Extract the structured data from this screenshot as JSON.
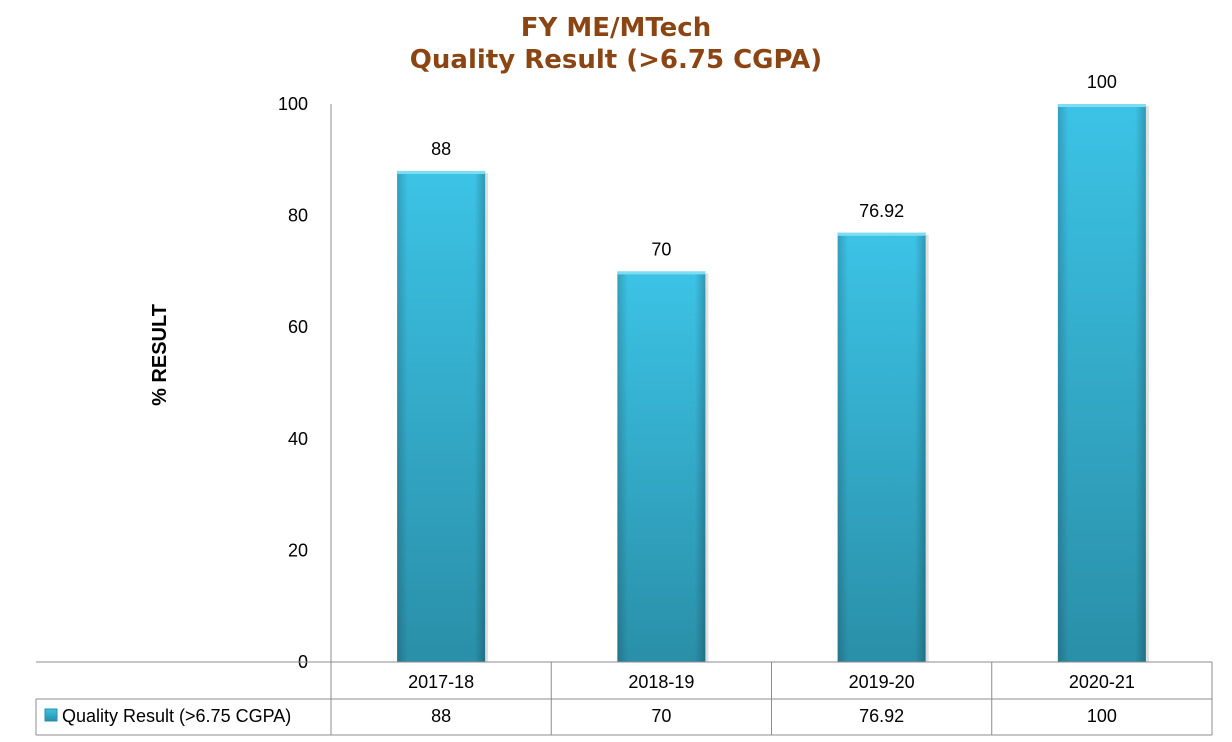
{
  "chart_data": {
    "type": "bar",
    "title_line1": "FY ME/MTech",
    "title_line2": "Quality Result (>6.75 CGPA)",
    "xlabel": "",
    "ylabel": "% RESULT",
    "categories": [
      "2017-18",
      "2018-19",
      "2019-20",
      "2020-21"
    ],
    "series": [
      {
        "name": "Quality Result (>6.75 CGPA)",
        "values": [
          88,
          70,
          76.92,
          100
        ]
      }
    ],
    "data_labels": [
      "88",
      "70",
      "76.92",
      "100"
    ],
    "ylim": [
      0,
      100
    ],
    "yticks": [
      0,
      20,
      40,
      60,
      80,
      100
    ],
    "grid": false,
    "legend": "data-table",
    "colors": {
      "bar_light": "#3CC3E6",
      "bar_dark": "#2A8FA8",
      "title": "#8B4513"
    }
  }
}
